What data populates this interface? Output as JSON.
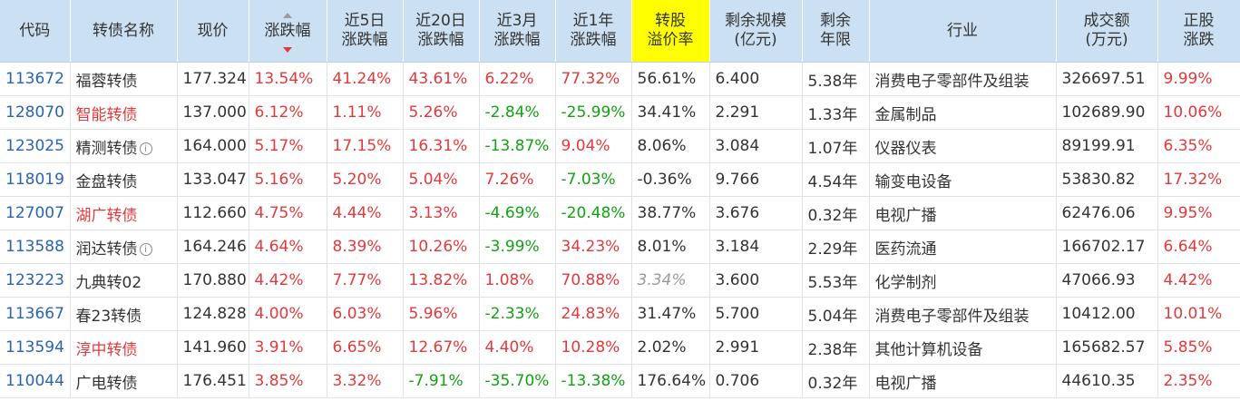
{
  "columns": [
    {
      "key": "code",
      "line1": "代码",
      "line2": ""
    },
    {
      "key": "name",
      "line1": "转债名称",
      "line2": ""
    },
    {
      "key": "price",
      "line1": "现价",
      "line2": ""
    },
    {
      "key": "chg",
      "line1": "涨跌幅",
      "line2": ""
    },
    {
      "key": "chg5",
      "line1": "近5日",
      "line2": "涨跌幅"
    },
    {
      "key": "chg20",
      "line1": "近20日",
      "line2": "涨跌幅"
    },
    {
      "key": "chg3m",
      "line1": "近3月",
      "line2": "涨跌幅"
    },
    {
      "key": "chg1y",
      "line1": "近1年",
      "line2": "涨跌幅"
    },
    {
      "key": "premium",
      "line1": "转股",
      "line2": "溢价率"
    },
    {
      "key": "scale",
      "line1": "剩余规模",
      "line2": "(亿元)"
    },
    {
      "key": "years",
      "line1": "剩余",
      "line2": "年限"
    },
    {
      "key": "industry",
      "line1": "行业",
      "line2": ""
    },
    {
      "key": "volume",
      "line1": "成交额",
      "line2": "(万元)"
    },
    {
      "key": "stockchg",
      "line1": "正股",
      "line2": "涨跌"
    }
  ],
  "rows": [
    {
      "code": "113672",
      "name": "福蓉转债",
      "name_red": false,
      "info": false,
      "price": "177.324",
      "chg": "13.54%",
      "chg5": "41.24%",
      "chg20": "43.61%",
      "chg3m": "6.22%",
      "chg1y": "77.32%",
      "premium": "56.61%",
      "premium_dim": false,
      "scale": "6.400",
      "years": "5.38年",
      "industry": "消费电子零部件及组装",
      "volume": "326697.51",
      "stockchg": "9.99%"
    },
    {
      "code": "128070",
      "name": "智能转债",
      "name_red": true,
      "info": false,
      "price": "137.000",
      "chg": "6.12%",
      "chg5": "1.11%",
      "chg20": "5.26%",
      "chg3m": "-2.84%",
      "chg1y": "-25.99%",
      "premium": "34.41%",
      "premium_dim": false,
      "scale": "2.291",
      "years": "1.33年",
      "industry": "金属制品",
      "volume": "102689.90",
      "stockchg": "10.06%"
    },
    {
      "code": "123025",
      "name": "精测转债",
      "name_red": false,
      "info": true,
      "price": "164.000",
      "chg": "5.17%",
      "chg5": "17.15%",
      "chg20": "16.31%",
      "chg3m": "-13.87%",
      "chg1y": "9.04%",
      "premium": "8.06%",
      "premium_dim": false,
      "scale": "3.084",
      "years": "1.07年",
      "industry": "仪器仪表",
      "volume": "89199.91",
      "stockchg": "6.35%"
    },
    {
      "code": "118019",
      "name": "金盘转债",
      "name_red": false,
      "info": false,
      "price": "133.047",
      "chg": "5.16%",
      "chg5": "5.20%",
      "chg20": "5.04%",
      "chg3m": "7.26%",
      "chg1y": "-7.03%",
      "premium": "-0.36%",
      "premium_dim": false,
      "scale": "9.766",
      "years": "4.54年",
      "industry": "输变电设备",
      "volume": "53830.82",
      "stockchg": "17.32%"
    },
    {
      "code": "127007",
      "name": "湖广转债",
      "name_red": true,
      "info": false,
      "price": "112.660",
      "chg": "4.75%",
      "chg5": "4.44%",
      "chg20": "3.13%",
      "chg3m": "-4.69%",
      "chg1y": "-20.48%",
      "premium": "38.77%",
      "premium_dim": false,
      "scale": "3.676",
      "years": "0.32年",
      "industry": "电视广播",
      "volume": "62476.06",
      "stockchg": "9.95%"
    },
    {
      "code": "113588",
      "name": "润达转债",
      "name_red": false,
      "info": true,
      "price": "164.246",
      "chg": "4.64%",
      "chg5": "8.39%",
      "chg20": "10.26%",
      "chg3m": "-3.99%",
      "chg1y": "34.23%",
      "premium": "8.01%",
      "premium_dim": false,
      "scale": "3.184",
      "years": "2.29年",
      "industry": "医药流通",
      "volume": "166702.17",
      "stockchg": "6.64%"
    },
    {
      "code": "123223",
      "name": "九典转02",
      "name_red": false,
      "info": false,
      "price": "170.880",
      "chg": "4.42%",
      "chg5": "7.77%",
      "chg20": "13.82%",
      "chg3m": "1.08%",
      "chg1y": "70.88%",
      "premium": "3.34%",
      "premium_dim": true,
      "scale": "3.600",
      "years": "5.53年",
      "industry": "化学制剂",
      "volume": "47066.93",
      "stockchg": "4.42%"
    },
    {
      "code": "113667",
      "name": "春23转债",
      "name_red": false,
      "info": false,
      "price": "124.828",
      "chg": "4.00%",
      "chg5": "6.03%",
      "chg20": "5.96%",
      "chg3m": "-2.33%",
      "chg1y": "24.83%",
      "premium": "31.47%",
      "premium_dim": false,
      "scale": "5.700",
      "years": "5.04年",
      "industry": "消费电子零部件及组装",
      "volume": "10412.00",
      "stockchg": "10.01%"
    },
    {
      "code": "113594",
      "name": "淳中转债",
      "name_red": true,
      "info": false,
      "price": "141.960",
      "chg": "3.91%",
      "chg5": "6.65%",
      "chg20": "12.67%",
      "chg3m": "4.40%",
      "chg1y": "10.28%",
      "premium": "2.02%",
      "premium_dim": false,
      "scale": "2.991",
      "years": "2.38年",
      "industry": "其他计算机设备",
      "volume": "165682.57",
      "stockchg": "5.85%"
    },
    {
      "code": "110044",
      "name": "广电转债",
      "name_red": false,
      "info": false,
      "price": "176.451",
      "chg": "3.85%",
      "chg5": "3.32%",
      "chg20": "-7.91%",
      "chg3m": "-35.70%",
      "chg1y": "-13.38%",
      "premium": "176.64%",
      "premium_dim": false,
      "scale": "0.706",
      "years": "0.32年",
      "industry": "电视广播",
      "volume": "44610.35",
      "stockchg": "2.35%"
    }
  ],
  "icons": {
    "info": "info-circle-icon",
    "sort": "sort-desc-icon"
  },
  "colors": {
    "up": "#e4393c",
    "down": "#12a312",
    "code": "#2a64b0",
    "header_bg": "#cbe0f2",
    "highlight": "#ffff00"
  }
}
